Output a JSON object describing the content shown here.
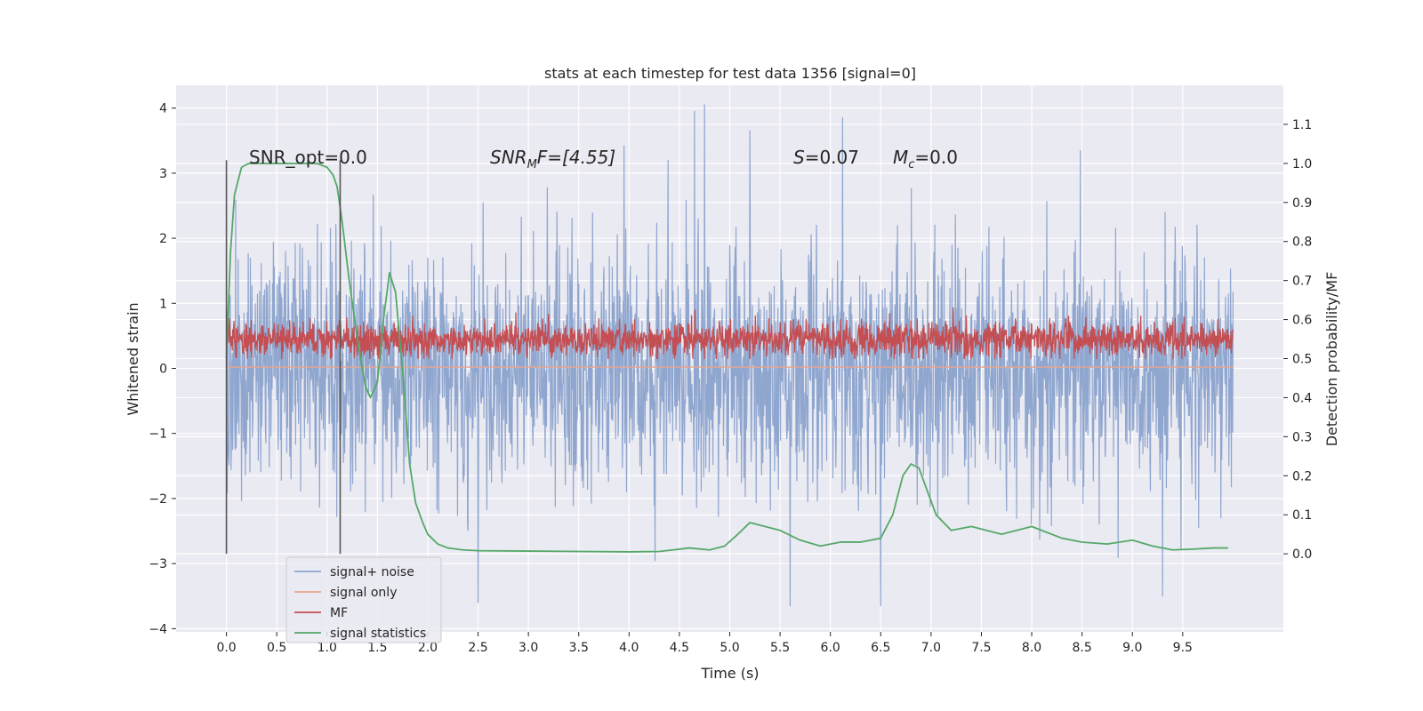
{
  "chart_data": {
    "type": "line",
    "title": "stats at each timestep for test data 1356 [signal=0]",
    "xlabel": "Time (s)",
    "ylabel": "Whitened strain",
    "y2label": "Detection probability/MF",
    "xlim": [
      -0.5,
      10.5
    ],
    "ylim": [
      -4.05,
      4.35
    ],
    "y2lim": [
      -0.2,
      1.2
    ],
    "xticks": [
      0.0,
      0.5,
      1.0,
      1.5,
      2.0,
      2.5,
      3.0,
      3.5,
      4.0,
      4.5,
      5.0,
      5.5,
      6.0,
      6.5,
      7.0,
      7.5,
      8.0,
      8.5,
      9.0,
      9.5
    ],
    "xtick_labels": [
      "0.0",
      "0.5",
      "1.0",
      "1.5",
      "2.0",
      "2.5",
      "3.0",
      "3.5",
      "4.0",
      "4.5",
      "5.0",
      "5.5",
      "6.0",
      "6.5",
      "7.0",
      "7.5",
      "8.0",
      "8.5",
      "9.0",
      "9.5"
    ],
    "yticks": [
      -4,
      -3,
      -2,
      -1,
      0,
      1,
      2,
      3,
      4
    ],
    "ytick_labels": [
      "−4",
      "−3",
      "−2",
      "−1",
      "0",
      "1",
      "2",
      "3",
      "4"
    ],
    "y2ticks": [
      0.0,
      0.1,
      0.2,
      0.3,
      0.4,
      0.5,
      0.6,
      0.7,
      0.8,
      0.9,
      1.0,
      1.1
    ],
    "y2tick_labels": [
      "0.0",
      "0.1",
      "0.2",
      "0.3",
      "0.4",
      "0.5",
      "0.6",
      "0.7",
      "0.8",
      "0.9",
      "1.0",
      "1.1"
    ],
    "grid": true,
    "legend_placement": "lower-left",
    "colors": {
      "background": "#eaeaf2",
      "grid": "#ffffff",
      "signal_noise": "#8fa6cf",
      "signal_only": "#e8a58d",
      "mf": "#c44e52",
      "signal_statistics": "#55a868",
      "vline": "#555555"
    },
    "annotations": {
      "snr_opt": "SNR_opt=0.0",
      "snr_mf_prefix": "SNR",
      "snr_mf_sub": "M",
      "snr_mf_suffix": "F=[4.55]",
      "s_prefix": "S",
      "s_suffix": "=0.07",
      "mc_prefix": "M",
      "mc_sub": "c",
      "mc_suffix": "=0.0"
    },
    "vlines": [
      {
        "x": 0.0,
        "y_range": [
          -2.85,
          3.2
        ]
      },
      {
        "x": 1.13,
        "y_range": [
          -2.85,
          3.2
        ]
      }
    ],
    "series": [
      {
        "name": "signal+ noise",
        "axis": "left",
        "kind": "noise",
        "x_range": [
          0.0,
          10.0
        ],
        "samples": 2400,
        "noise_std": 0.92,
        "peak_min": -3.65,
        "peak_max": 4.05,
        "peaks": [
          [
            4.65,
            3.95
          ],
          [
            4.75,
            4.05
          ],
          [
            6.12,
            3.85
          ],
          [
            5.2,
            3.65
          ],
          [
            3.95,
            3.42
          ],
          [
            5.6,
            -3.65
          ],
          [
            6.5,
            -3.65
          ],
          [
            2.5,
            -3.6
          ],
          [
            9.3,
            -3.5
          ]
        ]
      },
      {
        "name": "signal only",
        "axis": "left",
        "kind": "flat",
        "x_range": [
          0.0,
          10.0
        ],
        "value": 0.02
      },
      {
        "name": "MF",
        "axis": "right",
        "kind": "noise",
        "x_range": [
          0.0,
          10.0
        ],
        "samples": 2400,
        "mean": 0.55,
        "noise_std": 0.022,
        "peak_min": 0.5,
        "peak_max": 0.63,
        "peaks": [
          [
            7.22,
            0.63
          ],
          [
            4.62,
            0.61
          ],
          [
            6.1,
            0.6
          ]
        ]
      },
      {
        "name": "signal statistics",
        "axis": "right",
        "x": [
          0.0,
          0.04,
          0.08,
          0.15,
          0.22,
          0.35,
          0.5,
          0.7,
          0.9,
          1.0,
          1.06,
          1.1,
          1.15,
          1.22,
          1.3,
          1.38,
          1.43,
          1.5,
          1.56,
          1.62,
          1.68,
          1.75,
          1.82,
          1.88,
          1.95,
          2.0,
          2.1,
          2.2,
          2.35,
          2.5,
          3.0,
          3.5,
          4.0,
          4.3,
          4.6,
          4.8,
          4.95,
          5.08,
          5.2,
          5.35,
          5.5,
          5.7,
          5.9,
          6.1,
          6.3,
          6.5,
          6.62,
          6.72,
          6.8,
          6.88,
          6.95,
          7.05,
          7.2,
          7.4,
          7.55,
          7.7,
          7.85,
          8.0,
          8.15,
          8.3,
          8.5,
          8.75,
          9.0,
          9.2,
          9.4,
          9.6,
          9.8,
          9.95
        ],
        "y": [
          0.5,
          0.77,
          0.92,
          0.99,
          1.0,
          1.0,
          1.0,
          1.0,
          1.0,
          0.99,
          0.97,
          0.94,
          0.85,
          0.7,
          0.55,
          0.43,
          0.4,
          0.44,
          0.6,
          0.72,
          0.67,
          0.47,
          0.23,
          0.13,
          0.08,
          0.05,
          0.025,
          0.015,
          0.01,
          0.008,
          0.007,
          0.006,
          0.005,
          0.006,
          0.015,
          0.01,
          0.02,
          0.05,
          0.08,
          0.07,
          0.06,
          0.035,
          0.02,
          0.03,
          0.03,
          0.04,
          0.1,
          0.2,
          0.23,
          0.22,
          0.17,
          0.1,
          0.06,
          0.07,
          0.06,
          0.05,
          0.06,
          0.07,
          0.055,
          0.04,
          0.03,
          0.025,
          0.035,
          0.02,
          0.01,
          0.012,
          0.015,
          0.015
        ]
      }
    ]
  }
}
